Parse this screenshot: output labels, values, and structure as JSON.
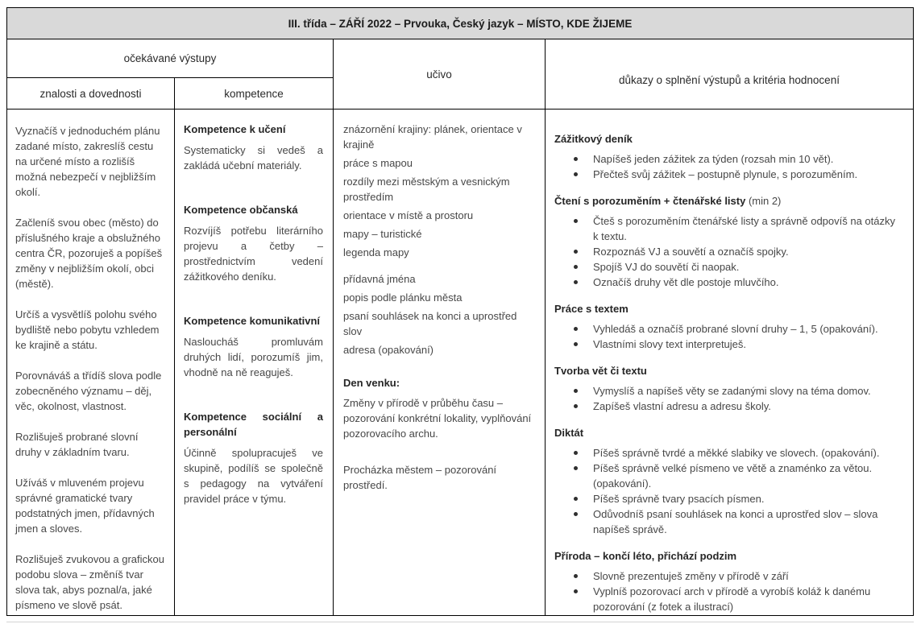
{
  "colors": {
    "title_bar_bg": "#d9d9d9",
    "border": "#000000",
    "body_text": "#474747",
    "heading_text": "#262626"
  },
  "title": "III. třída – ZÁŘÍ 2022 – Prvouka, Český jazyk – MÍSTO, KDE ŽIJEME",
  "header": {
    "expected_outcomes": "očekávané výstupy",
    "knowledge_skills": "znalosti a dovednosti",
    "competences": "kompetence",
    "curriculum": "učivo",
    "evidence": "důkazy o splnění výstupů a kritéria hodnocení"
  },
  "knowledge_skills_paragraphs": [
    "Vyznačíš v jednoduchém plánu zadané místo, zakreslíš cestu na určené místo a rozlišíš možná nebezpečí v nejbližším okolí.",
    "Začleníš svou obec (město) do příslušného kraje a obslužného centra ČR, pozoruješ a popíšeš změny v nejbližším okolí, obci (městě).",
    "Určíš a vysvětlíš polohu svého bydliště nebo pobytu vzhledem ke krajině a státu.",
    "Porovnáváš a třídíš slova podle zobecněného významu – děj, věc, okolnost, vlastnost.",
    "Rozlišuješ probrané slovní druhy v základním tvaru.",
    "Užíváš v mluveném projevu správné gramatické tvary podstatných jmen, přídavných jmen a sloves.",
    "Rozlišuješ zvukovou a grafickou podobu slova – změníš tvar slova tak, abys poznal/a, jaké písmeno ve slově psát."
  ],
  "competence_sections": [
    {
      "heading": "Kompetence k učení",
      "body": "Systematicky si vedeš a zakládá učební materiály."
    },
    {
      "heading": "Kompetence občanská",
      "body": "Rozvíjíš potřebu literárního projevu a četby – prostřednictvím vedení zážitkového deníku."
    },
    {
      "heading": "Kompetence komunikativní",
      "body": "Nasloucháš promluvám druhých lidí, porozumíš jim, vhodně na ně reaguješ."
    },
    {
      "heading": "Kompetence sociální a personální",
      "body": "Účinně spolupracuješ ve skupině, podílíš se společně s pedagogy na vytváření pravidel práce v týmu."
    }
  ],
  "curriculum": {
    "group1": [
      "znázornění krajiny: plánek, orientace v krajině",
      "práce s mapou",
      "rozdíly mezi městským a vesnickým prostředím",
      "orientace v místě a prostoru",
      "mapy – turistické",
      "legenda mapy"
    ],
    "group2": [
      "přídavná jména",
      "popis podle plánku města",
      "psaní souhlásek na konci a uprostřed slov",
      "adresa (opakování)"
    ],
    "den_venku_heading": "Den venku:",
    "den_venku_body": "Změny v přírodě v průběhu času – pozorování konkrétní lokality, vyplňování pozorovacího archu.",
    "walk": "Procházka městem – pozorování prostředí."
  },
  "evidence_sections": [
    {
      "heading": "Zážitkový deník",
      "suffix": "",
      "bullets": [
        "Napíšeš jeden zážitek za týden (rozsah min 10 vět).",
        "Přečteš svůj zážitek – postupně plynule, s porozuměním."
      ]
    },
    {
      "heading": "Čtení s porozuměním + čtenářské listy",
      "suffix": " (min 2)",
      "bullets": [
        "Čteš s porozuměním čtenářské listy a správně odpovíš na otázky k textu.",
        "Rozpoznáš VJ a souvětí a označíš spojky.",
        "Spojíš VJ do souvětí či naopak.",
        "Označíš druhy vět dle postoje mluvčího."
      ]
    },
    {
      "heading": "Práce s textem",
      "suffix": "",
      "bullets": [
        "Vyhledáš a označíš probrané slovní druhy – 1, 5 (opakování).",
        "Vlastními slovy text interpretuješ."
      ]
    },
    {
      "heading": "Tvorba vět či textu",
      "suffix": "",
      "bullets": [
        "Vymyslíš a napíšeš věty se zadanými slovy na téma domov.",
        "Zapíšeš vlastní adresu a adresu školy."
      ]
    },
    {
      "heading": "Diktát",
      "suffix": "",
      "bullets": [
        "Píšeš správně tvrdé a měkké slabiky ve slovech. (opakování).",
        "Píšeš správně velké písmeno ve větě a znaménko za větou. (opakování).",
        "Píšeš správně tvary psacích písmen.",
        "Odůvodníš psaní souhlásek na konci a uprostřed slov – slova napíšeš správě."
      ]
    },
    {
      "heading": "Příroda – končí léto, přichází podzim",
      "suffix": "",
      "bullets": [
        "Slovně prezentuješ změny v přírodě v září",
        "Vyplníš pozorovací arch v přírodě a vyrobíš koláž k danému pozorování (z fotek a ilustrací)"
      ]
    }
  ]
}
